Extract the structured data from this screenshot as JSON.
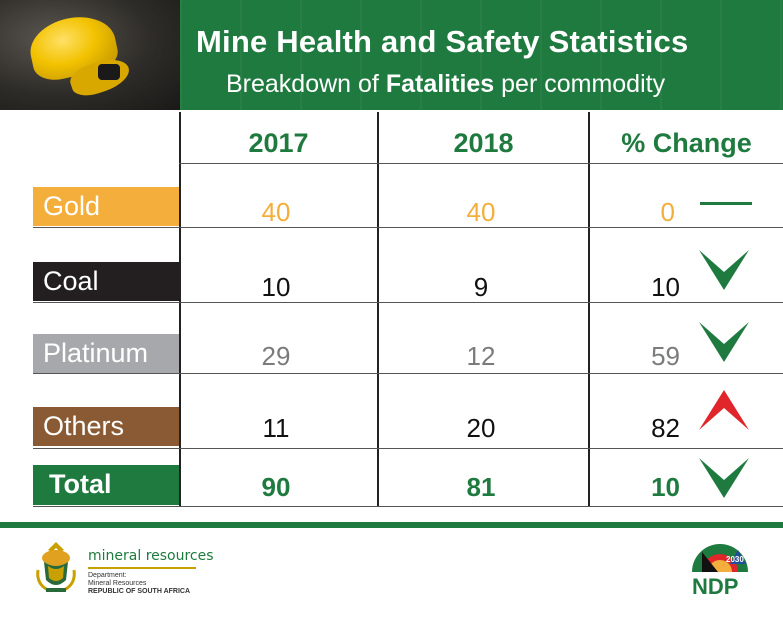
{
  "header": {
    "title": "Mine Health and Safety Statistics",
    "subtitle_pre": "Breakdown of ",
    "subtitle_bold": "Fatalities",
    "subtitle_post": " per commodity"
  },
  "columns": [
    "2017",
    "2018",
    "% Change"
  ],
  "rows": [
    {
      "label": "Gold",
      "v2017": "40",
      "v2018": "40",
      "change": "0",
      "trend": "flat",
      "label_bg": "#f4ae3c",
      "text_color": "#f4ae3c"
    },
    {
      "label": "Coal",
      "v2017": "10",
      "v2018": "9",
      "change": "10",
      "trend": "down",
      "label_bg": "#231f20",
      "text_color": "#111111"
    },
    {
      "label": "Platinum",
      "v2017": "29",
      "v2018": "12",
      "change": "59",
      "trend": "down",
      "label_bg": "#a6a8ab",
      "text_color": "#7a7b7d"
    },
    {
      "label": "Others",
      "v2017": "11",
      "v2018": "20",
      "change": "82",
      "trend": "up",
      "label_bg": "#8a5a35",
      "text_color": "#111111"
    }
  ],
  "total": {
    "label": "Total",
    "v2017": "90",
    "v2018": "81",
    "change": "10",
    "trend": "down",
    "label_bg": "#1f7a3f"
  },
  "footer": {
    "dept_name": "mineral resources",
    "dept_line1": "Department:",
    "dept_line2": "Mineral Resources",
    "dept_line3": "REPUBLIC OF SOUTH AFRICA",
    "ndp_year": "2030",
    "ndp_text": "NDP"
  },
  "colors": {
    "brand_green": "#1f7a3f",
    "up_red": "#e0262a",
    "down_green": "#1f7a3f"
  },
  "chart_data": {
    "type": "table",
    "title": "Mine Health and Safety Statistics",
    "subtitle": "Breakdown of Fatalities per commodity",
    "columns": [
      "2017",
      "2018",
      "% Change"
    ],
    "categories": [
      "Gold",
      "Coal",
      "Platinum",
      "Others",
      "Total"
    ],
    "series": [
      {
        "name": "2017",
        "values": [
          40,
          10,
          29,
          11,
          90
        ]
      },
      {
        "name": "2018",
        "values": [
          40,
          9,
          12,
          20,
          81
        ]
      },
      {
        "name": "% Change",
        "values": [
          0,
          10,
          59,
          82,
          10
        ]
      }
    ],
    "trend": [
      "flat",
      "down",
      "down",
      "up",
      "down"
    ]
  }
}
